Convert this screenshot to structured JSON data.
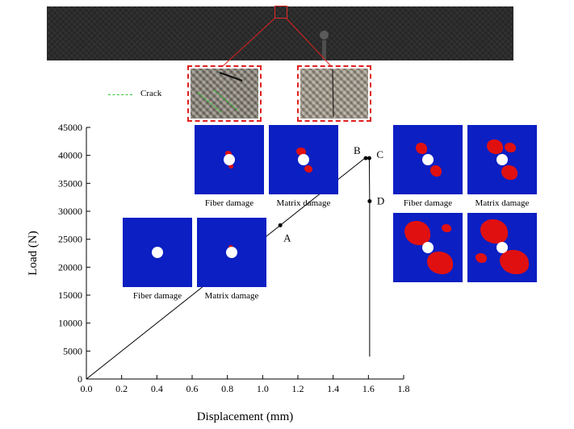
{
  "figure": {
    "crack_legend": "Crack",
    "colors": {
      "specimen": "#262626",
      "damage_map": "#0b1fc2",
      "damage": "#e01010",
      "crack_line": "#2ec42e",
      "zoom_frame": "#e02020"
    }
  },
  "damage_panels": {
    "low": {
      "fiber_label": "Fiber damage",
      "matrix_label": "Matrix damage"
    },
    "mid": {
      "fiber_label": "Fiber damage",
      "matrix_label": "Matrix damage"
    },
    "high": {
      "fiber_label": "Fiber damage",
      "matrix_label": "Matrix damage"
    }
  },
  "chart_data": {
    "type": "line",
    "title": "",
    "xlabel": "Displacement (mm)",
    "ylabel": "Load  (N)",
    "xlim": [
      0.0,
      1.8
    ],
    "ylim": [
      0,
      45000
    ],
    "xticks": [
      "0.0",
      "0.2",
      "0.4",
      "0.6",
      "0.8",
      "1.0",
      "1.2",
      "1.4",
      "1.6",
      "1.8"
    ],
    "yticks": [
      "0",
      "5000",
      "10000",
      "15000",
      "20000",
      "25000",
      "30000",
      "35000",
      "40000",
      "45000"
    ],
    "grid": false,
    "series": [
      {
        "x": [
          0.0,
          0.4,
          0.8,
          1.1,
          1.4,
          1.58,
          1.605,
          1.607,
          1.607
        ],
        "y": [
          0,
          10000,
          20000,
          27500,
          35000,
          39500,
          39500,
          31800,
          4000
        ]
      }
    ],
    "points": [
      {
        "label": "A",
        "x": 1.1,
        "y": 27500
      },
      {
        "label": "B",
        "x": 1.585,
        "y": 39500
      },
      {
        "label": "C",
        "x": 1.605,
        "y": 39500
      },
      {
        "label": "D",
        "x": 1.607,
        "y": 31800
      }
    ]
  }
}
